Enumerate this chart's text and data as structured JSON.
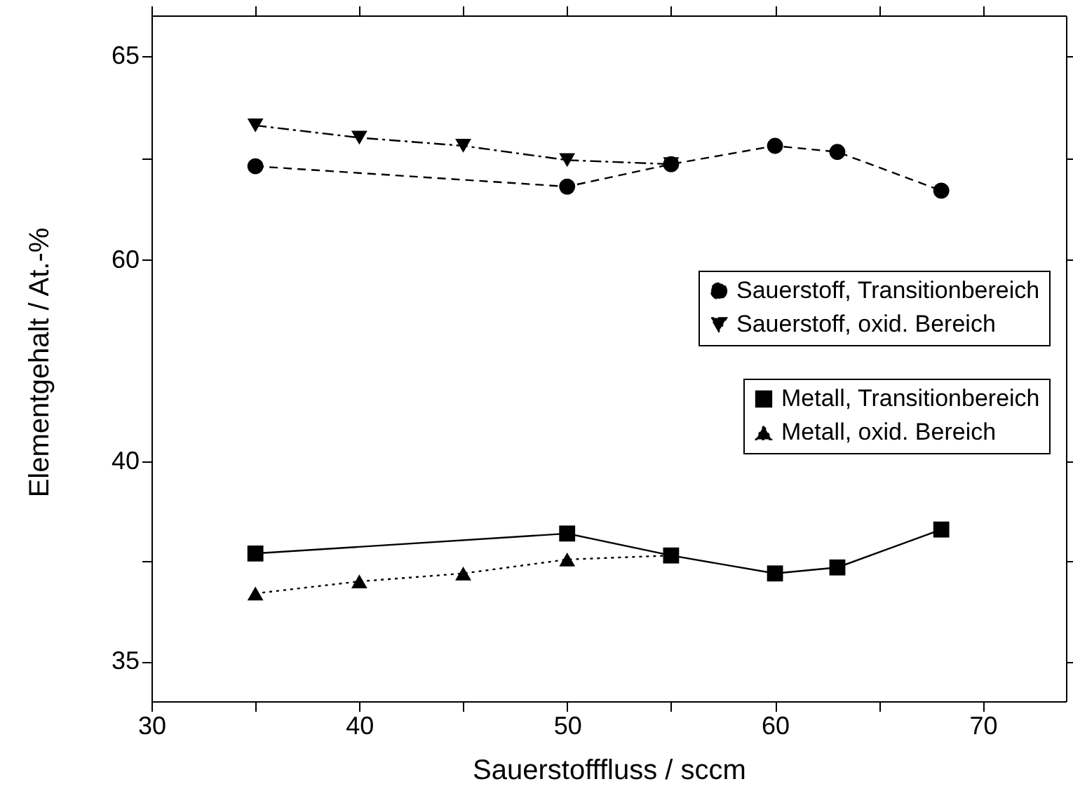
{
  "chart_data": [
    {
      "type": "line",
      "ylabel": "Elementgehalt / At.-%",
      "xlim": [
        30,
        74
      ],
      "xticks": [
        30,
        {
          "value": 35,
          "label": null
        },
        40,
        {
          "value": 45,
          "label": null
        },
        50,
        {
          "value": 55,
          "label": null
        },
        60,
        {
          "value": 65,
          "label": null
        },
        70
      ],
      "ylim": [
        57.5,
        66
      ],
      "yticks": [
        60,
        {
          "value": 62.5,
          "label": null
        },
        65
      ],
      "tick_labels": "y",
      "legend": "bottom right",
      "series": [
        {
          "name": "Sauerstoff, Transitionbereich",
          "color": "#000000",
          "marker": "circle",
          "line_style": "dashed",
          "x": [
            35,
            50,
            55,
            60,
            63,
            68
          ],
          "values": [
            62.3,
            61.8,
            62.35,
            62.8,
            62.65,
            61.7
          ]
        },
        {
          "name": "Sauerstoff, oxid. Bereich",
          "color": "#000000",
          "marker": "triangle-down",
          "line_style": "dashdot",
          "x": [
            35,
            40,
            45,
            50,
            55
          ],
          "values": [
            63.3,
            63.0,
            62.8,
            62.45,
            62.35
          ]
        }
      ]
    },
    {
      "type": "line",
      "xlabel": "Sauerstofffluss / sccm",
      "xlim": [
        30,
        74
      ],
      "xticks": [
        30,
        {
          "value": 35,
          "label": null
        },
        40,
        {
          "value": 45,
          "label": null
        },
        50,
        {
          "value": 55,
          "label": null
        },
        60,
        {
          "value": 65,
          "label": null
        },
        70
      ],
      "ylim": [
        34,
        42.5
      ],
      "yticks": [
        35,
        {
          "value": 37.5,
          "label": null
        },
        40
      ],
      "legend": "top right",
      "series": [
        {
          "name": "Metall, Transitionbereich",
          "color": "#000000",
          "marker": "square",
          "line_style": "solid",
          "x": [
            35,
            50,
            55,
            60,
            63,
            68
          ],
          "values": [
            37.7,
            38.2,
            37.65,
            37.2,
            37.35,
            38.3
          ]
        },
        {
          "name": "Metall, oxid. Bereich",
          "color": "#000000",
          "marker": "triangle",
          "line_style": "dotted",
          "x": [
            35,
            40,
            45,
            50,
            55
          ],
          "values": [
            36.7,
            37.0,
            37.2,
            37.55,
            37.65
          ]
        }
      ]
    }
  ]
}
